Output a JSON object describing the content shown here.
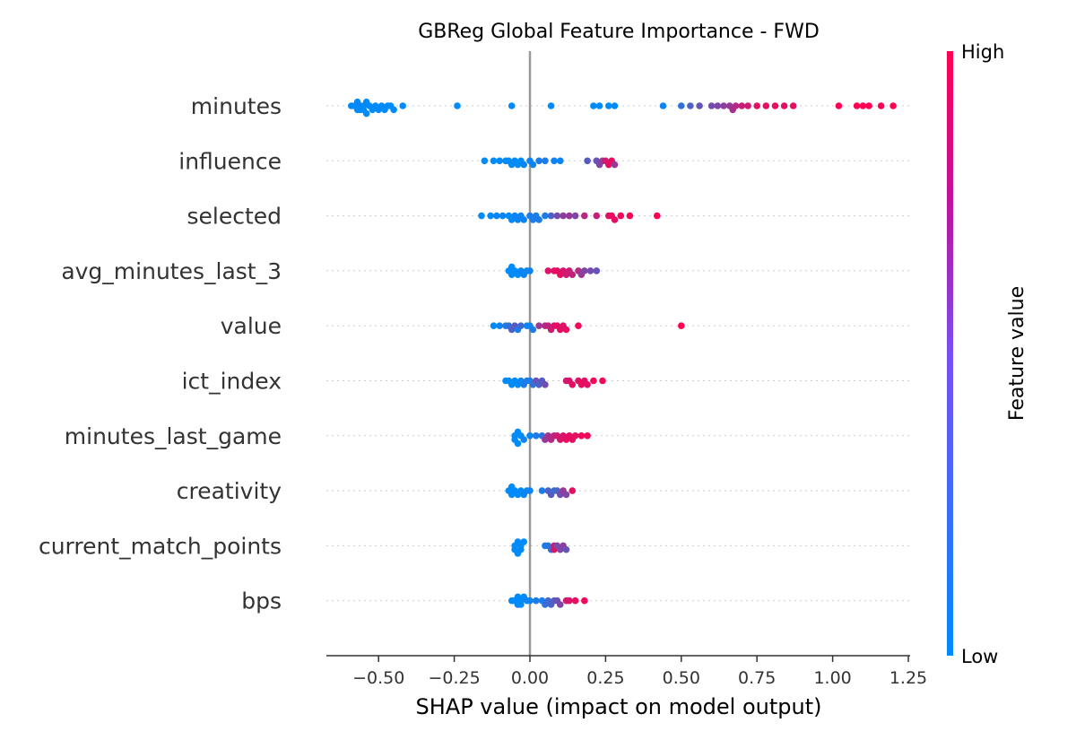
{
  "chart_data": {
    "type": "scatter",
    "title": "GBReg Global Feature Importance - FWD",
    "xlabel": "SHAP value (impact on model output)",
    "ylabel": "",
    "xlim": [
      -0.66,
      1.3
    ],
    "xticks": [
      -0.5,
      -0.25,
      0.0,
      0.25,
      0.5,
      0.75,
      1.0,
      1.25
    ],
    "xtick_labels": [
      "−0.50",
      "−0.25",
      "0.00",
      "0.25",
      "0.50",
      "0.75",
      "1.00",
      "1.25"
    ],
    "grid": false,
    "colorbar": {
      "label": "Feature value",
      "high": "High",
      "low": "Low",
      "low_color": "#008bfb",
      "high_color": "#ff0052"
    },
    "zero_line_color": "#999999",
    "features": [
      {
        "name": "minutes",
        "points": [
          [
            -0.59,
            0.0
          ],
          [
            -0.58,
            0.0
          ],
          [
            -0.57,
            0.0
          ],
          [
            -0.57,
            0.0
          ],
          [
            -0.56,
            0.05
          ],
          [
            -0.56,
            0.0
          ],
          [
            -0.55,
            0.0
          ],
          [
            -0.55,
            0.0
          ],
          [
            -0.54,
            0.0
          ],
          [
            -0.54,
            0.0
          ],
          [
            -0.53,
            0.0
          ],
          [
            -0.52,
            0.0
          ],
          [
            -0.51,
            0.0
          ],
          [
            -0.5,
            0.0
          ],
          [
            -0.49,
            0.0
          ],
          [
            -0.48,
            0.0
          ],
          [
            -0.47,
            0.0
          ],
          [
            -0.46,
            0.0
          ],
          [
            -0.45,
            0.0
          ],
          [
            -0.42,
            0.0
          ],
          [
            -0.24,
            0.0
          ],
          [
            -0.06,
            0.0
          ],
          [
            0.07,
            0.0
          ],
          [
            0.21,
            0.0
          ],
          [
            0.23,
            0.0
          ],
          [
            0.26,
            0.0
          ],
          [
            0.28,
            0.0
          ],
          [
            0.44,
            0.05
          ],
          [
            0.5,
            0.2
          ],
          [
            0.53,
            0.3
          ],
          [
            0.56,
            0.4
          ],
          [
            0.6,
            0.45
          ],
          [
            0.62,
            0.5
          ],
          [
            0.64,
            0.55
          ],
          [
            0.66,
            0.6
          ],
          [
            0.67,
            0.65
          ],
          [
            0.68,
            0.7
          ],
          [
            0.7,
            0.8
          ],
          [
            0.72,
            0.8
          ],
          [
            0.75,
            0.9
          ],
          [
            0.78,
            0.9
          ],
          [
            0.81,
            0.9
          ],
          [
            0.84,
            0.9
          ],
          [
            0.87,
            0.9
          ],
          [
            1.02,
            1.0
          ],
          [
            1.08,
            1.0
          ],
          [
            1.1,
            1.0
          ],
          [
            1.12,
            1.0
          ],
          [
            1.16,
            1.0
          ],
          [
            1.2,
            1.0
          ]
        ]
      },
      {
        "name": "influence",
        "points": [
          [
            -0.15,
            0.0
          ],
          [
            -0.12,
            0.0
          ],
          [
            -0.1,
            0.0
          ],
          [
            -0.08,
            0.0
          ],
          [
            -0.07,
            0.0
          ],
          [
            -0.06,
            0.0
          ],
          [
            -0.05,
            0.0
          ],
          [
            -0.04,
            0.0
          ],
          [
            -0.03,
            0.0
          ],
          [
            -0.02,
            0.05
          ],
          [
            0.0,
            0.05
          ],
          [
            0.01,
            0.05
          ],
          [
            0.03,
            0.1
          ],
          [
            0.05,
            0.1
          ],
          [
            0.08,
            0.05
          ],
          [
            0.1,
            0.05
          ],
          [
            0.19,
            0.35
          ],
          [
            0.22,
            0.4
          ],
          [
            0.23,
            0.5
          ],
          [
            0.24,
            0.6
          ],
          [
            0.25,
            0.8
          ],
          [
            0.26,
            0.9
          ],
          [
            0.27,
            0.9
          ],
          [
            0.28,
            0.6
          ]
        ]
      },
      {
        "name": "selected",
        "points": [
          [
            -0.16,
            0.0
          ],
          [
            -0.13,
            0.0
          ],
          [
            -0.11,
            0.05
          ],
          [
            -0.09,
            0.05
          ],
          [
            -0.07,
            0.0
          ],
          [
            -0.06,
            0.0
          ],
          [
            -0.05,
            0.05
          ],
          [
            -0.04,
            0.05
          ],
          [
            -0.03,
            0.05
          ],
          [
            -0.02,
            0.05
          ],
          [
            0.0,
            0.1
          ],
          [
            0.01,
            0.1
          ],
          [
            0.02,
            0.1
          ],
          [
            0.03,
            0.1
          ],
          [
            0.05,
            0.1
          ],
          [
            0.07,
            0.3
          ],
          [
            0.09,
            0.45
          ],
          [
            0.11,
            0.55
          ],
          [
            0.13,
            0.6
          ],
          [
            0.15,
            0.5
          ],
          [
            0.18,
            0.7
          ],
          [
            0.22,
            0.75
          ],
          [
            0.26,
            0.9
          ],
          [
            0.27,
            0.9
          ],
          [
            0.28,
            0.9
          ],
          [
            0.3,
            0.95
          ],
          [
            0.33,
            0.95
          ],
          [
            0.42,
            1.0
          ]
        ]
      },
      {
        "name": "avg_minutes_last_3",
        "points": [
          [
            -0.07,
            0.0
          ],
          [
            -0.06,
            0.0
          ],
          [
            -0.06,
            0.0
          ],
          [
            -0.05,
            0.0
          ],
          [
            -0.04,
            0.0
          ],
          [
            -0.03,
            0.05
          ],
          [
            -0.02,
            0.05
          ],
          [
            -0.01,
            0.05
          ],
          [
            0.0,
            0.05
          ],
          [
            0.06,
            0.85
          ],
          [
            0.08,
            0.9
          ],
          [
            0.09,
            0.9
          ],
          [
            0.1,
            0.9
          ],
          [
            0.11,
            0.85
          ],
          [
            0.12,
            0.8
          ],
          [
            0.13,
            0.8
          ],
          [
            0.14,
            0.75
          ],
          [
            0.16,
            0.7
          ],
          [
            0.17,
            0.6
          ],
          [
            0.18,
            0.5
          ],
          [
            0.2,
            0.45
          ],
          [
            0.22,
            0.4
          ]
        ]
      },
      {
        "name": "value",
        "points": [
          [
            -0.12,
            0.0
          ],
          [
            -0.1,
            0.05
          ],
          [
            -0.08,
            0.1
          ],
          [
            -0.07,
            0.2
          ],
          [
            -0.06,
            0.3
          ],
          [
            -0.05,
            0.35
          ],
          [
            -0.04,
            0.1
          ],
          [
            -0.03,
            0.25
          ],
          [
            -0.01,
            0.05
          ],
          [
            0.0,
            0.05
          ],
          [
            0.01,
            0.1
          ],
          [
            0.03,
            0.6
          ],
          [
            0.05,
            0.7
          ],
          [
            0.06,
            0.75
          ],
          [
            0.07,
            0.8
          ],
          [
            0.08,
            0.85
          ],
          [
            0.09,
            0.9
          ],
          [
            0.1,
            0.9
          ],
          [
            0.11,
            0.85
          ],
          [
            0.12,
            0.9
          ],
          [
            0.16,
            0.95
          ],
          [
            0.5,
            1.0
          ]
        ]
      },
      {
        "name": "ict_index",
        "points": [
          [
            -0.08,
            0.0
          ],
          [
            -0.07,
            0.0
          ],
          [
            -0.06,
            0.0
          ],
          [
            -0.05,
            0.0
          ],
          [
            -0.04,
            0.0
          ],
          [
            -0.03,
            0.05
          ],
          [
            -0.02,
            0.1
          ],
          [
            -0.01,
            0.1
          ],
          [
            0.0,
            0.1
          ],
          [
            0.01,
            0.2
          ],
          [
            0.02,
            0.4
          ],
          [
            0.03,
            0.3
          ],
          [
            0.04,
            0.35
          ],
          [
            0.05,
            0.45
          ],
          [
            0.12,
            0.8
          ],
          [
            0.13,
            0.85
          ],
          [
            0.14,
            0.9
          ],
          [
            0.16,
            0.9
          ],
          [
            0.17,
            0.9
          ],
          [
            0.18,
            0.9
          ],
          [
            0.19,
            0.9
          ],
          [
            0.21,
            0.95
          ],
          [
            0.24,
            0.95
          ]
        ]
      },
      {
        "name": "minutes_last_game",
        "points": [
          [
            -0.05,
            0.0
          ],
          [
            -0.05,
            0.0
          ],
          [
            -0.04,
            0.0
          ],
          [
            -0.04,
            0.0
          ],
          [
            -0.03,
            0.0
          ],
          [
            -0.02,
            0.05
          ],
          [
            0.0,
            0.05
          ],
          [
            0.02,
            0.1
          ],
          [
            0.04,
            0.2
          ],
          [
            0.05,
            0.6
          ],
          [
            0.06,
            0.65
          ],
          [
            0.07,
            0.7
          ],
          [
            0.08,
            0.75
          ],
          [
            0.09,
            0.8
          ],
          [
            0.1,
            0.85
          ],
          [
            0.11,
            0.85
          ],
          [
            0.12,
            0.9
          ],
          [
            0.13,
            0.9
          ],
          [
            0.14,
            0.9
          ],
          [
            0.15,
            0.9
          ],
          [
            0.17,
            0.95
          ],
          [
            0.19,
            0.95
          ]
        ]
      },
      {
        "name": "creativity",
        "points": [
          [
            -0.07,
            0.0
          ],
          [
            -0.06,
            0.0
          ],
          [
            -0.06,
            0.0
          ],
          [
            -0.05,
            0.0
          ],
          [
            -0.04,
            0.0
          ],
          [
            -0.03,
            0.0
          ],
          [
            -0.02,
            0.05
          ],
          [
            -0.01,
            0.05
          ],
          [
            0.0,
            0.05
          ],
          [
            0.04,
            0.1
          ],
          [
            0.06,
            0.3
          ],
          [
            0.07,
            0.35
          ],
          [
            0.08,
            0.2
          ],
          [
            0.09,
            0.3
          ],
          [
            0.1,
            0.45
          ],
          [
            0.11,
            0.6
          ],
          [
            0.12,
            0.5
          ],
          [
            0.14,
            0.9
          ]
        ]
      },
      {
        "name": "current_match_points",
        "points": [
          [
            -0.05,
            0.0
          ],
          [
            -0.05,
            0.0
          ],
          [
            -0.04,
            0.0
          ],
          [
            -0.04,
            0.0
          ],
          [
            -0.03,
            0.0
          ],
          [
            -0.03,
            0.0
          ],
          [
            -0.02,
            0.0
          ],
          [
            0.05,
            0.1
          ],
          [
            0.06,
            0.15
          ],
          [
            0.07,
            0.2
          ],
          [
            0.08,
            0.8
          ],
          [
            0.08,
            0.85
          ],
          [
            0.09,
            0.5
          ],
          [
            0.1,
            0.5
          ],
          [
            0.11,
            0.55
          ],
          [
            0.12,
            0.4
          ]
        ]
      },
      {
        "name": "bps",
        "points": [
          [
            -0.06,
            0.0
          ],
          [
            -0.05,
            0.0
          ],
          [
            -0.04,
            0.0
          ],
          [
            -0.04,
            0.0
          ],
          [
            -0.03,
            0.0
          ],
          [
            -0.03,
            0.0
          ],
          [
            -0.02,
            0.0
          ],
          [
            -0.01,
            0.05
          ],
          [
            0.0,
            0.05
          ],
          [
            0.02,
            0.1
          ],
          [
            0.04,
            0.1
          ],
          [
            0.05,
            0.2
          ],
          [
            0.06,
            0.25
          ],
          [
            0.07,
            0.3
          ],
          [
            0.08,
            0.35
          ],
          [
            0.09,
            0.4
          ],
          [
            0.1,
            0.5
          ],
          [
            0.12,
            0.8
          ],
          [
            0.13,
            0.85
          ],
          [
            0.15,
            0.9
          ],
          [
            0.18,
            0.95
          ]
        ]
      }
    ]
  }
}
